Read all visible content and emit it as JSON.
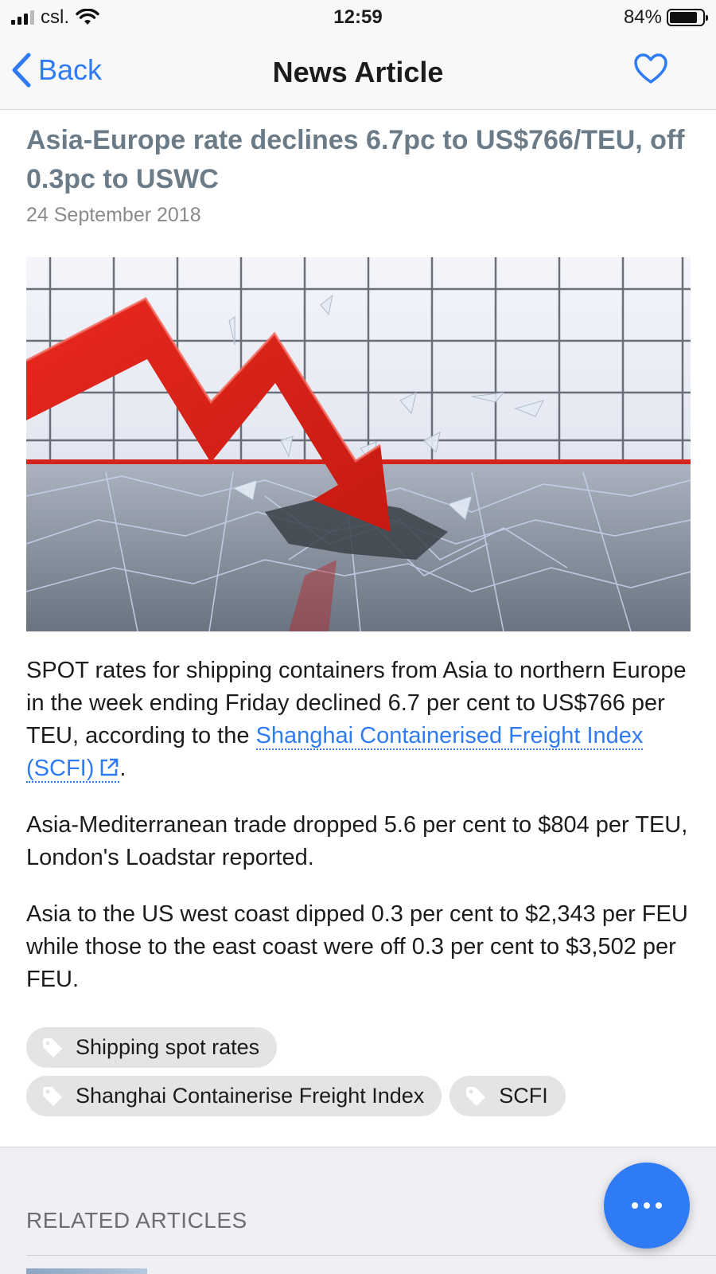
{
  "status_bar": {
    "carrier": "csl.",
    "time": "12:59",
    "battery_percent": "84%",
    "battery_level": 0.84
  },
  "nav": {
    "back_label": "Back",
    "title": "News Article",
    "favorite_icon": "heart-outline-icon"
  },
  "article": {
    "headline": "Asia-Europe rate declines 6.7pc to US$766/TEU, off 0.3pc to USWC",
    "date": "24 September 2018",
    "paragraph1_before_link": "SPOT rates for shipping containers from Asia to northern Europe in the week ending Friday declined 6.7 per cent to US$766 per TEU, according to the ",
    "link_text": "Shanghai Containerised Freight Index (SCFI)",
    "paragraph1_after_link": ".",
    "paragraph2": "Asia-Mediterranean trade dropped 5.6 per cent to $804 per TEU, London's Loadstar reported.",
    "paragraph3": "Asia to the US west coast dipped 0.3 per cent to $2,343 per FEU while those to the east coast were off 0.3 per cent to $3,502 per FEU."
  },
  "tags": [
    {
      "label": "Shipping spot rates"
    },
    {
      "label": "Shanghai Containerise Freight Index"
    },
    {
      "label": "SCFI"
    }
  ],
  "related": {
    "title": "RELATED ARTICLES"
  },
  "colors": {
    "accent": "#2f7bf5",
    "headline": "#6b7c88",
    "arrow_red": "#e0241b"
  }
}
